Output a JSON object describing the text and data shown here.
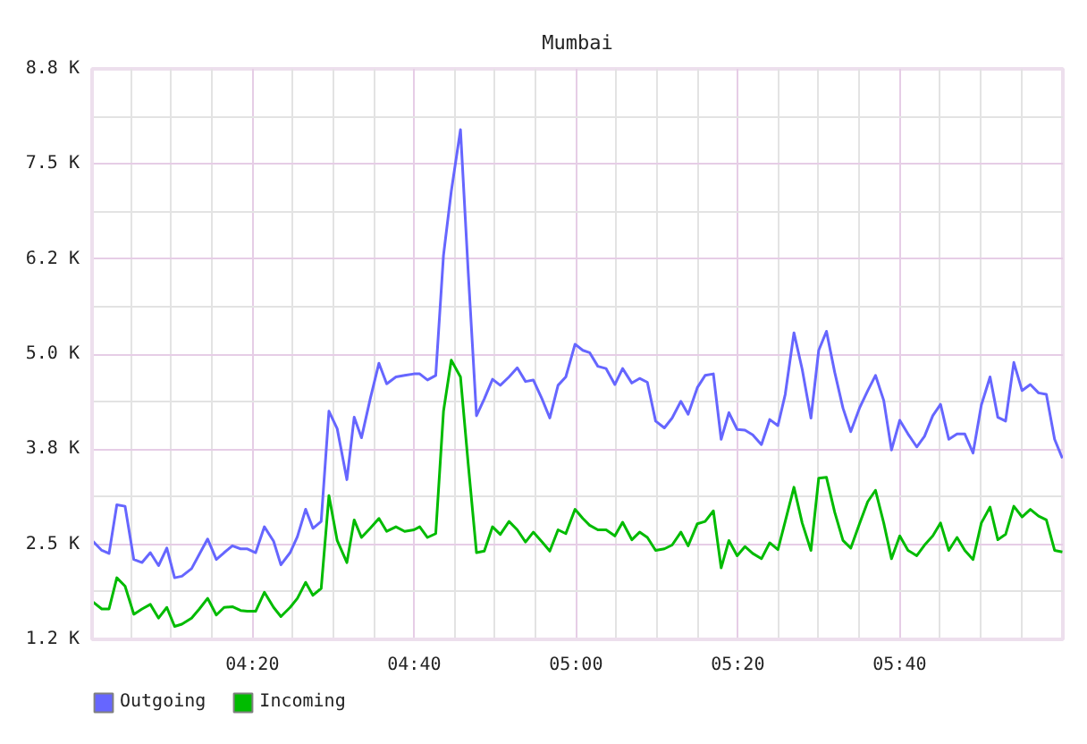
{
  "chart_data": {
    "type": "line",
    "title": "Mumbai",
    "x": [
      4.003,
      4.023,
      4.038,
      4.054,
      4.071,
      4.089,
      4.106,
      4.123,
      4.14,
      4.157,
      4.173,
      4.188,
      4.208,
      4.224,
      4.241,
      4.259,
      4.275,
      4.292,
      4.309,
      4.323,
      4.34,
      4.358,
      4.377,
      4.392,
      4.411,
      4.426,
      4.443,
      4.458,
      4.475,
      4.491,
      4.508,
      4.528,
      4.543,
      4.558,
      4.576,
      4.594,
      4.61,
      4.629,
      4.647,
      4.666,
      4.678,
      4.694,
      4.711,
      4.727,
      4.743,
      4.762,
      4.778,
      4.795,
      4.811,
      4.828,
      4.844,
      4.862,
      4.879,
      4.896,
      4.912,
      4.93,
      4.946,
      4.963,
      4.979,
      4.998,
      5.014,
      5.028,
      5.045,
      5.062,
      5.08,
      5.096,
      5.115,
      5.131,
      5.147,
      5.164,
      5.182,
      5.198,
      5.216,
      5.231,
      5.25,
      5.266,
      5.283,
      5.299,
      5.315,
      5.332,
      5.348,
      5.364,
      5.382,
      5.399,
      5.416,
      5.431,
      5.449,
      5.466,
      5.484,
      5.5,
      5.516,
      5.533,
      5.55,
      5.566,
      5.584,
      5.601,
      5.617,
      5.634,
      5.65,
      5.667,
      5.684,
      5.702,
      5.718,
      5.735,
      5.751,
      5.768,
      5.785,
      5.801,
      5.818,
      5.835,
      5.853,
      5.869,
      5.885,
      5.902,
      5.919,
      5.936,
      5.953,
      5.969,
      5.986,
      6.002
    ],
    "series": [
      {
        "name": "Outgoing",
        "color": "#6666ff",
        "values": [
          2550,
          2420,
          2380,
          3020,
          3000,
          2300,
          2260,
          2390,
          2220,
          2450,
          2060,
          2080,
          2180,
          2370,
          2570,
          2300,
          2390,
          2480,
          2440,
          2440,
          2390,
          2730,
          2540,
          2230,
          2390,
          2600,
          2960,
          2710,
          2800,
          4250,
          4020,
          3350,
          4170,
          3900,
          4410,
          4880,
          4610,
          4700,
          4720,
          4740,
          4740,
          4660,
          4720,
          6300,
          7140,
          7950,
          6070,
          4190,
          4410,
          4670,
          4590,
          4700,
          4820,
          4640,
          4660,
          4410,
          4160,
          4590,
          4700,
          5130,
          5050,
          5020,
          4840,
          4810,
          4600,
          4810,
          4620,
          4680,
          4630,
          4120,
          4030,
          4160,
          4380,
          4210,
          4560,
          4720,
          4740,
          3880,
          4230,
          4010,
          4000,
          3940,
          3810,
          4140,
          4060,
          4470,
          5280,
          4800,
          4160,
          5050,
          5300,
          4760,
          4290,
          3980,
          4290,
          4520,
          4720,
          4390,
          3740,
          4130,
          3950,
          3780,
          3920,
          4190,
          4340,
          3880,
          3950,
          3950,
          3700,
          4330,
          4700,
          4170,
          4120,
          4890,
          4520,
          4600,
          4490,
          4470,
          3880,
          3630
        ]
      },
      {
        "name": "Incoming",
        "color": "#00bb00",
        "values": [
          1750,
          1650,
          1650,
          2060,
          1950,
          1580,
          1650,
          1710,
          1530,
          1670,
          1420,
          1450,
          1530,
          1650,
          1790,
          1570,
          1670,
          1680,
          1630,
          1620,
          1620,
          1870,
          1670,
          1550,
          1670,
          1790,
          2000,
          1830,
          1920,
          3140,
          2550,
          2260,
          2820,
          2590,
          2710,
          2840,
          2670,
          2730,
          2670,
          2690,
          2730,
          2590,
          2640,
          4250,
          4920,
          4700,
          3550,
          2390,
          2410,
          2730,
          2630,
          2800,
          2690,
          2530,
          2660,
          2530,
          2410,
          2690,
          2640,
          2960,
          2840,
          2750,
          2690,
          2690,
          2610,
          2790,
          2560,
          2660,
          2590,
          2420,
          2440,
          2490,
          2660,
          2480,
          2770,
          2800,
          2940,
          2190,
          2550,
          2350,
          2470,
          2380,
          2310,
          2520,
          2430,
          2800,
          3250,
          2780,
          2420,
          3370,
          3380,
          2920,
          2550,
          2450,
          2770,
          3060,
          3210,
          2780,
          2310,
          2610,
          2420,
          2350,
          2490,
          2610,
          2780,
          2420,
          2590,
          2420,
          2300,
          2780,
          2990,
          2560,
          2630,
          3000,
          2860,
          2960,
          2870,
          2820,
          2420,
          2400
        ]
      }
    ],
    "xlim": [
      4.003,
      6.003
    ],
    "xticks": [
      {
        "value": 4.0833,
        "label": null
      },
      {
        "value": 4.1667,
        "label": null
      },
      {
        "value": 4.25,
        "label": null
      },
      {
        "value": 4.3333,
        "label": "04:20"
      },
      {
        "value": 4.4167,
        "label": null
      },
      {
        "value": 4.5,
        "label": null
      },
      {
        "value": 4.5833,
        "label": null
      },
      {
        "value": 4.6667,
        "label": "04:40"
      },
      {
        "value": 4.75,
        "label": null
      },
      {
        "value": 4.8333,
        "label": null
      },
      {
        "value": 4.9167,
        "label": null
      },
      {
        "value": 5.0,
        "label": "05:00"
      },
      {
        "value": 5.0833,
        "label": null
      },
      {
        "value": 5.1667,
        "label": null
      },
      {
        "value": 5.25,
        "label": null
      },
      {
        "value": 5.3333,
        "label": "05:20"
      },
      {
        "value": 5.4167,
        "label": null
      },
      {
        "value": 5.5,
        "label": null
      },
      {
        "value": 5.5833,
        "label": null
      },
      {
        "value": 5.6667,
        "label": "05:40"
      },
      {
        "value": 5.75,
        "label": null
      },
      {
        "value": 5.8333,
        "label": null
      },
      {
        "value": 5.9167,
        "label": null
      }
    ],
    "ylim": [
      1250,
      8750
    ],
    "yticks": [
      {
        "value": 1250,
        "label": "1.2 K"
      },
      {
        "value": 1875,
        "label": null
      },
      {
        "value": 2500,
        "label": "2.5 K"
      },
      {
        "value": 3125,
        "label": null
      },
      {
        "value": 3750,
        "label": "3.8 K"
      },
      {
        "value": 4375,
        "label": null
      },
      {
        "value": 5000,
        "label": "5.0 K"
      },
      {
        "value": 5625,
        "label": null
      },
      {
        "value": 6250,
        "label": "6.2 K"
      },
      {
        "value": 6875,
        "label": null
      },
      {
        "value": 7500,
        "label": "7.5 K"
      },
      {
        "value": 8125,
        "label": null
      },
      {
        "value": 8750,
        "label": "8.8 K"
      }
    ],
    "grid": true,
    "legend": "bottom left"
  }
}
